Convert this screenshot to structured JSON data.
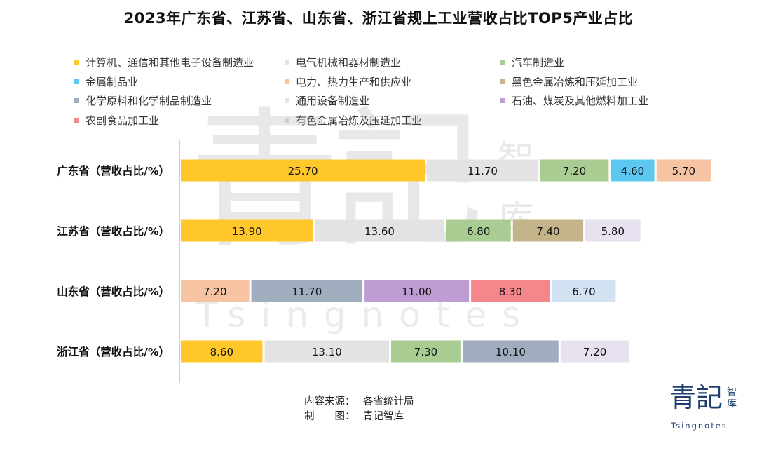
{
  "title": "2023年广东省、江苏省、山东省、浙江省规上工业营收占比TOP5产业占比",
  "chart_data": {
    "type": "bar",
    "orientation": "horizontal",
    "stacked": true,
    "title": "2023年广东省、江苏省、山东省、浙江省规上工业营收占比TOP5产业占比",
    "legend_position": "top",
    "grid": false,
    "xlim": [
      0,
      60
    ],
    "legend": [
      {
        "name": "计算机、通信和其他电子设备制造业",
        "color": "#FFC729"
      },
      {
        "name": "电气机械和器材制造业",
        "color": "#E3E3E3"
      },
      {
        "name": "汽车制造业",
        "color": "#A8CC92"
      },
      {
        "name": "金属制品业",
        "color": "#5CC8F0"
      },
      {
        "name": "电力、热力生产和供应业",
        "color": "#F6C4A3"
      },
      {
        "name": "黑色金属冶炼和压延加工业",
        "color": "#C4B48A"
      },
      {
        "name": "化学原料和化学制品制造业",
        "color": "#A0ADBF"
      },
      {
        "name": "通用设备制造业",
        "color": "#E8E2F0"
      },
      {
        "name": "石油、煤炭及其他燃料加工业",
        "color": "#BE9DD2"
      },
      {
        "name": "农副食品加工业",
        "color": "#F5868C"
      },
      {
        "name": "有色金属冶炼及压延加工业",
        "color": "#D2E2F2"
      }
    ],
    "rows": [
      {
        "label": "广东省（营收占比/%）",
        "segments": [
          {
            "series": "计算机、通信和其他电子设备制造业",
            "value": 25.7,
            "text": "25.70"
          },
          {
            "series": "电气机械和器材制造业",
            "value": 11.7,
            "text": "11.70"
          },
          {
            "series": "汽车制造业",
            "value": 7.2,
            "text": "7.20"
          },
          {
            "series": "金属制品业",
            "value": 4.6,
            "text": "4.60"
          },
          {
            "series": "电力、热力生产和供应业",
            "value": 5.7,
            "text": "5.70"
          }
        ]
      },
      {
        "label": "江苏省（营收占比/%）",
        "segments": [
          {
            "series": "计算机、通信和其他电子设备制造业",
            "value": 13.9,
            "text": "13.90"
          },
          {
            "series": "电气机械和器材制造业",
            "value": 13.6,
            "text": "13.60"
          },
          {
            "series": "汽车制造业",
            "value": 6.8,
            "text": "6.80"
          },
          {
            "series": "黑色金属冶炼和压延加工业",
            "value": 7.4,
            "text": "7.40"
          },
          {
            "series": "通用设备制造业",
            "value": 5.8,
            "text": "5.80"
          }
        ]
      },
      {
        "label": "山东省（营收占比/%）",
        "segments": [
          {
            "series": "电力、热力生产和供应业",
            "value": 7.2,
            "text": "7.20"
          },
          {
            "series": "化学原料和化学制品制造业",
            "value": 11.7,
            "text": "11.70"
          },
          {
            "series": "石油、煤炭及其他燃料加工业",
            "value": 11.0,
            "text": "11.00"
          },
          {
            "series": "农副食品加工业",
            "value": 8.3,
            "text": "8.30"
          },
          {
            "series": "有色金属冶炼及压延加工业",
            "value": 6.7,
            "text": "6.70"
          }
        ]
      },
      {
        "label": "浙江省（营收占比/%）",
        "segments": [
          {
            "series": "计算机、通信和其他电子设备制造业",
            "value": 8.6,
            "text": "8.60"
          },
          {
            "series": "电气机械和器材制造业",
            "value": 13.1,
            "text": "13.10"
          },
          {
            "series": "汽车制造业",
            "value": 7.3,
            "text": "7.30"
          },
          {
            "series": "化学原料和化学制品制造业",
            "value": 10.1,
            "text": "10.10"
          },
          {
            "series": "通用设备制造业",
            "value": 7.2,
            "text": "7.20"
          }
        ]
      }
    ]
  },
  "source": {
    "source_key": "内容来源：",
    "source_value": "各省统计局",
    "maker_key": "制　　图：",
    "maker_value": "青记智库"
  },
  "watermark": {
    "main": "青記",
    "side1": "智",
    "side2": "库",
    "sub": "Tsingnotes"
  },
  "logo": {
    "main": "青記",
    "side": "智库",
    "sub": "Tsingnotes"
  }
}
